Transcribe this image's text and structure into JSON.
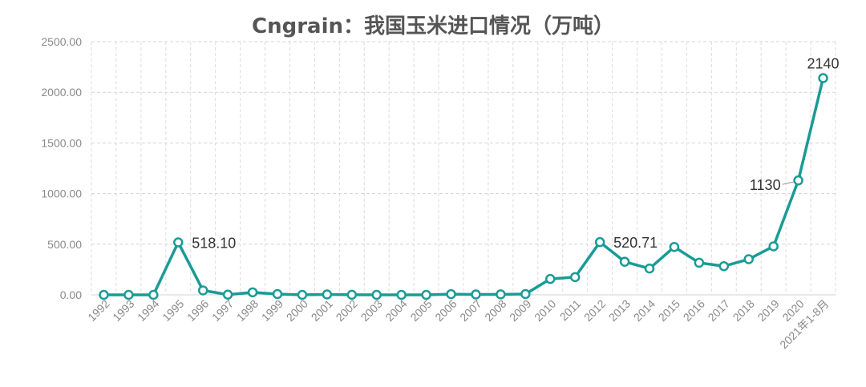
{
  "chart_data": {
    "type": "line",
    "title": "Cngrain：我国玉米进口情况（万吨）",
    "categories": [
      "1992",
      "1993",
      "1994",
      "1995",
      "1996",
      "1997",
      "1998",
      "1999",
      "2000",
      "2001",
      "2002",
      "2003",
      "2004",
      "2005",
      "2006",
      "2007",
      "2008",
      "2009",
      "2010",
      "2011",
      "2012",
      "2013",
      "2014",
      "2015",
      "2016",
      "2017",
      "2018",
      "2019",
      "2020",
      "2021年1-8月"
    ],
    "values": [
      0,
      0,
      0,
      518.1,
      44,
      2,
      25,
      8,
      0,
      4,
      1,
      0,
      0,
      0,
      7,
      4,
      5,
      8,
      157,
      175,
      520.71,
      327,
      260,
      473,
      317,
      283,
      352,
      479,
      1130,
      2140
    ],
    "y_ticks": [
      "0.00",
      "500.00",
      "1000.00",
      "1500.00",
      "2000.00",
      "2500.00"
    ],
    "ylim": [
      0,
      2500
    ],
    "data_labels": [
      {
        "index": 3,
        "text": "518.10"
      },
      {
        "index": 20,
        "text": "520.71"
      },
      {
        "index": 28,
        "text": "1130"
      },
      {
        "index": 29,
        "text": "2140"
      }
    ],
    "line_color": "#1a9b96",
    "grid": true
  }
}
